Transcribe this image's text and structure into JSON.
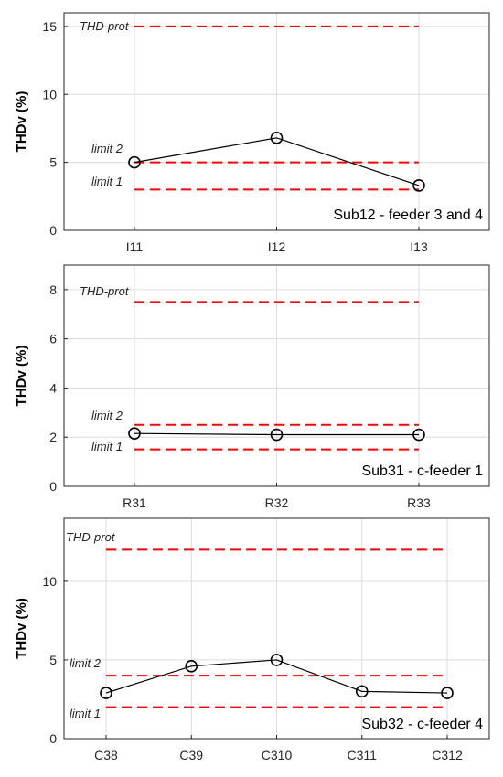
{
  "chart_data": [
    {
      "type": "line",
      "ylabel": "THDv (%)",
      "categories": [
        "I11",
        "I12",
        "I13"
      ],
      "ylim": [
        0,
        16
      ],
      "yticks": [
        0,
        5,
        10,
        15
      ],
      "grid": true,
      "series": [
        {
          "values": [
            5.0,
            6.8,
            3.3
          ],
          "color": "#000000",
          "marker": "open-circle"
        }
      ],
      "reference_lines": [
        {
          "label": "THD-prot",
          "value": 15,
          "color": "#ff0000"
        },
        {
          "label": "limit 2",
          "value": 5,
          "color": "#ff0000"
        },
        {
          "label": "limit 1",
          "value": 3,
          "color": "#ff0000"
        }
      ],
      "annotation": "Sub12 - feeder 3 and 4"
    },
    {
      "type": "line",
      "ylabel": "THDv (%)",
      "categories": [
        "R31",
        "R32",
        "R33"
      ],
      "ylim": [
        0,
        9
      ],
      "yticks": [
        0,
        2,
        4,
        6,
        8
      ],
      "grid": true,
      "series": [
        {
          "values": [
            2.15,
            2.1,
            2.1
          ],
          "color": "#000000",
          "marker": "open-circle"
        }
      ],
      "reference_lines": [
        {
          "label": "THD-prot",
          "value": 7.5,
          "color": "#ff0000"
        },
        {
          "label": "limit 2",
          "value": 2.5,
          "color": "#ff0000"
        },
        {
          "label": "limit 1",
          "value": 1.5,
          "color": "#ff0000"
        }
      ],
      "annotation": "Sub31 - c-feeder 1"
    },
    {
      "type": "line",
      "ylabel": "THDv (%)",
      "categories": [
        "C38",
        "C39",
        "C310",
        "C311",
        "C312"
      ],
      "ylim": [
        0,
        14
      ],
      "yticks": [
        0,
        5,
        10
      ],
      "grid": true,
      "series": [
        {
          "values": [
            2.9,
            4.6,
            5.0,
            3.0,
            2.9
          ],
          "color": "#000000",
          "marker": "open-circle"
        }
      ],
      "reference_lines": [
        {
          "label": "THD-prot",
          "value": 12,
          "color": "#ff0000"
        },
        {
          "label": "limit 2",
          "value": 4,
          "color": "#ff0000"
        },
        {
          "label": "limit 1",
          "value": 2,
          "color": "#ff0000"
        }
      ],
      "annotation": "Sub32 - c-feeder 4"
    }
  ]
}
